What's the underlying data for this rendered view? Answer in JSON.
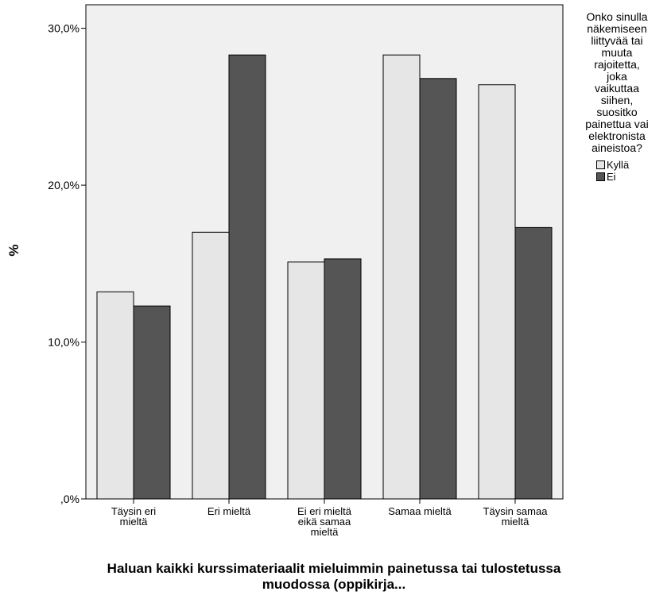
{
  "chart_data": {
    "type": "bar",
    "title": "",
    "xlabel": "Haluan kaikki kurssimateriaalit mieluimmin painetussa tai tulostetussa muodossa (oppikirja...",
    "ylabel": "%",
    "ylim": [
      0,
      30
    ],
    "yticks": [
      0,
      10,
      20,
      30
    ],
    "ytick_labels": [
      ",0%",
      "10,0%",
      "20,0%",
      "30,0%"
    ],
    "grid": false,
    "legend_position": "right",
    "legend_title": "Onko sinulla\nnäkemiseen\nliittyvää tai\nmuuta\nrajoitettа,\njoka\nvaikuttaa\nsiihen,\nsuositko\npainettua vai\nelektronista\naineistoa?",
    "categories": [
      "Täysin eri\nmieltä",
      "Eri mieltä",
      "Ei eri mieltä\neikä samaa\nmieltä",
      "Samaa mieltä",
      "Täysin samaa\nmieltä"
    ],
    "series": [
      {
        "name": "Kyllä",
        "color": "#e6e6e6",
        "values": [
          13.2,
          17.0,
          15.1,
          28.3,
          26.4
        ]
      },
      {
        "name": "Ei",
        "color": "#555555",
        "values": [
          12.3,
          28.3,
          15.3,
          26.8,
          17.3
        ]
      }
    ],
    "plot_background": "#f0f0f0"
  }
}
